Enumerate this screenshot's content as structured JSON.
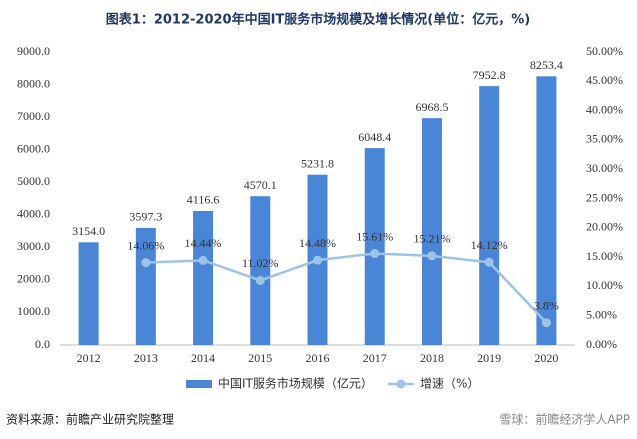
{
  "chart_data": {
    "type": "bar-line",
    "title": "图表1：2012-2020年中国IT服务市场规模及增长情况(单位：亿元，%)",
    "categories": [
      "2012",
      "2013",
      "2014",
      "2015",
      "2016",
      "2017",
      "2018",
      "2019",
      "2020"
    ],
    "series": [
      {
        "name": "中国IT服务市场规模（亿元）",
        "type": "bar",
        "color": "#4a86d8",
        "values": [
          3154.0,
          3597.3,
          4116.6,
          4570.1,
          5231.8,
          6048.4,
          6968.5,
          7952.8,
          8253.4
        ],
        "value_labels": [
          "3154.0",
          "3597.3",
          "4116.6",
          "4570.1",
          "5231.8",
          "6048.4",
          "6968.5",
          "7952.8",
          "8253.4"
        ]
      },
      {
        "name": "增速（%）",
        "type": "line",
        "axis": "y2",
        "color": "#9dc3e6",
        "values": [
          null,
          14.06,
          14.44,
          11.02,
          14.48,
          15.61,
          15.21,
          14.12,
          3.8
        ],
        "value_labels": [
          null,
          "14.06%",
          "14.44%",
          "11.02%",
          "14.48%",
          "15.61%",
          "15.21%",
          "14.12%",
          "3.8%"
        ]
      }
    ],
    "ylim": [
      0,
      9000
    ],
    "yticks": [
      {
        "value": 0,
        "label": "0.0"
      },
      {
        "value": 1000,
        "label": "1000.0"
      },
      {
        "value": 2000,
        "label": "2000.0"
      },
      {
        "value": 3000,
        "label": "3000.0"
      },
      {
        "value": 4000,
        "label": "4000.0"
      },
      {
        "value": 5000,
        "label": "5000.0"
      },
      {
        "value": 6000,
        "label": "6000.0"
      },
      {
        "value": 7000,
        "label": "7000.0"
      },
      {
        "value": 8000,
        "label": "8000.0"
      },
      {
        "value": 9000,
        "label": "9000.0"
      }
    ],
    "y2lim": [
      0,
      50
    ],
    "y2ticks": [
      {
        "value": 0,
        "label": "0.00%"
      },
      {
        "value": 5,
        "label": "5.00%"
      },
      {
        "value": 10,
        "label": "10.00%"
      },
      {
        "value": 15,
        "label": "15.00%"
      },
      {
        "value": 20,
        "label": "20.00%"
      },
      {
        "value": 25,
        "label": "25.00%"
      },
      {
        "value": 30,
        "label": "30.00%"
      },
      {
        "value": 35,
        "label": "35.00%"
      },
      {
        "value": 40,
        "label": "40.00%"
      },
      {
        "value": 45,
        "label": "45.00%"
      },
      {
        "value": 50,
        "label": "50.00%"
      }
    ],
    "source": "资料来源：前瞻产业研究院整理",
    "watermark": "雪球：前瞻经济学人APP"
  }
}
